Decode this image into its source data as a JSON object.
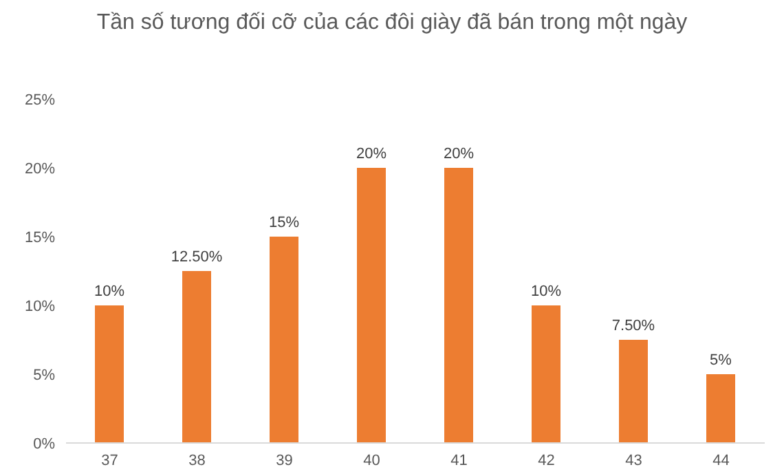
{
  "chart_data": {
    "type": "bar",
    "title": "Tần số tương đối cỡ của các đôi giày đã bán trong một ngày",
    "categories": [
      "37",
      "38",
      "39",
      "40",
      "41",
      "42",
      "43",
      "44"
    ],
    "values": [
      10,
      12.5,
      15,
      20,
      20,
      10,
      7.5,
      5
    ],
    "value_labels": [
      "10%",
      "12.50%",
      "15%",
      "20%",
      "20%",
      "10%",
      "7.50%",
      "5%"
    ],
    "color": "#ed7d31",
    "ylim": [
      0,
      25
    ],
    "yticks": [
      {
        "value": 0,
        "label": "0%"
      },
      {
        "value": 5,
        "label": "5%"
      },
      {
        "value": 10,
        "label": "10%"
      },
      {
        "value": 15,
        "label": "15%"
      },
      {
        "value": 20,
        "label": "20%"
      },
      {
        "value": 25,
        "label": "25%"
      }
    ],
    "grid": false,
    "legend": false
  }
}
